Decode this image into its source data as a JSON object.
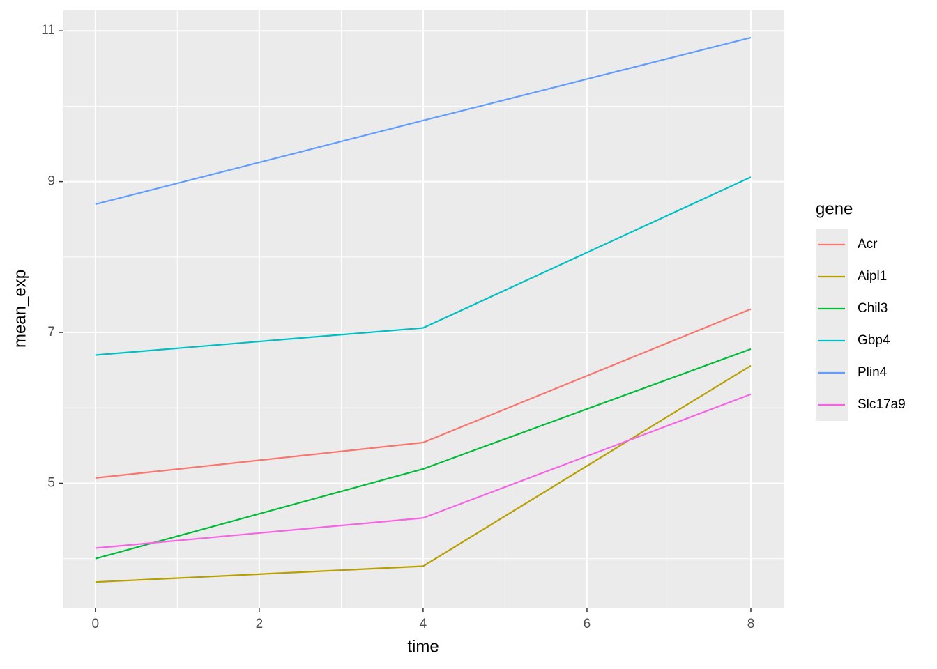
{
  "chart_data": {
    "type": "line",
    "x_label": "time",
    "y_label": "mean_exp",
    "legend_title": "gene",
    "x": [
      0,
      4,
      8
    ],
    "series": [
      {
        "name": "Acr",
        "color": "#F8766D",
        "values": [
          5.07,
          5.54,
          7.31
        ]
      },
      {
        "name": "Aipl1",
        "color": "#B79F00",
        "values": [
          3.69,
          3.9,
          6.56
        ]
      },
      {
        "name": "Chil3",
        "color": "#00BA38",
        "values": [
          4.0,
          5.19,
          6.78
        ]
      },
      {
        "name": "Gbp4",
        "color": "#00BFC4",
        "values": [
          6.7,
          7.06,
          9.06
        ]
      },
      {
        "name": "Plin4",
        "color": "#619CFF",
        "values": [
          8.7,
          9.81,
          10.91
        ]
      },
      {
        "name": "Slc17a9",
        "color": "#F564E3",
        "values": [
          4.14,
          4.54,
          6.18
        ]
      }
    ],
    "xlim": [
      -0.39,
      8.4
    ],
    "xticks": [
      0,
      2,
      4,
      6,
      8
    ],
    "ylim": [
      3.35,
      11.27
    ],
    "yticks": [
      5,
      7,
      9,
      11
    ],
    "grid": true,
    "legend": "right"
  }
}
